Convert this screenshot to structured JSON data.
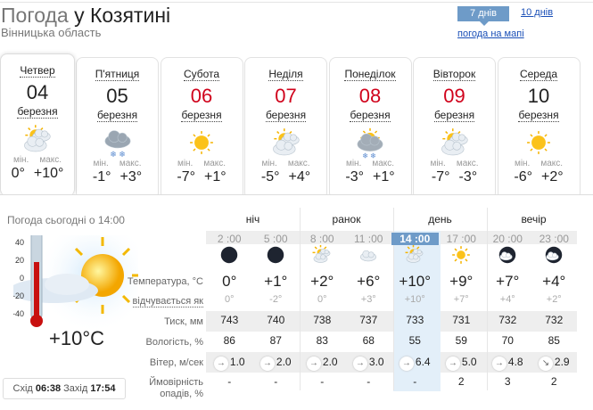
{
  "header": {
    "title_prefix": "Погода",
    "title_city": "у Козятині",
    "region": "Вінницька область",
    "btn_7": "7 днів",
    "link_10": "10 днів",
    "link_map": "погода на мапі"
  },
  "colors": {
    "accent": "#6e9bc8",
    "weekend": "#d0021b",
    "link": "#1a4fb7",
    "highlight": "#e3eff9"
  },
  "days": [
    {
      "name": "Четвер",
      "num": "04",
      "month": "березня",
      "icon": "sun-cloud",
      "min_label": "мін.",
      "max_label": "макс.",
      "min": "0°",
      "max": "+10°",
      "red": false
    },
    {
      "name": "П'ятниця",
      "num": "05",
      "month": "березня",
      "icon": "cloud-snow",
      "min_label": "мін.",
      "max_label": "макс.",
      "min": "-1°",
      "max": "+3°",
      "red": false
    },
    {
      "name": "Субота",
      "num": "06",
      "month": "березня",
      "icon": "sun",
      "min_label": "мін.",
      "max_label": "макс.",
      "min": "-7°",
      "max": "+1°",
      "red": true
    },
    {
      "name": "Неділя",
      "num": "07",
      "month": "березня",
      "icon": "sun-cloud",
      "min_label": "мін.",
      "max_label": "макс.",
      "min": "-5°",
      "max": "+4°",
      "red": true
    },
    {
      "name": "Понеділок",
      "num": "08",
      "month": "березня",
      "icon": "sun-cloud-snow",
      "min_label": "мін.",
      "max_label": "макс.",
      "min": "-3°",
      "max": "+1°",
      "red": true
    },
    {
      "name": "Вівторок",
      "num": "09",
      "month": "березня",
      "icon": "sun-cloud",
      "min_label": "мін.",
      "max_label": "макс.",
      "min": "-7°",
      "max": "-3°",
      "red": true
    },
    {
      "name": "Середа",
      "num": "10",
      "month": "березня",
      "icon": "sun",
      "min_label": "мін.",
      "max_label": "макс.",
      "min": "-6°",
      "max": "+2°",
      "red": false
    }
  ],
  "today": {
    "title": "Погода сьогодні о 14:00",
    "temp": "+10°C",
    "scale": [
      "40",
      "20",
      "0",
      "-20",
      "-40"
    ],
    "sunrise_label": "Схід",
    "sunrise": "06:38",
    "sunset_label": "Захід",
    "sunset": "17:54",
    "thermometer_level_c": 10
  },
  "table": {
    "periods": [
      "ніч",
      "ранок",
      "день",
      "вечір"
    ],
    "labels": {
      "temp": "Температура, °C",
      "feel": "відчувається як",
      "pres": "Тиск, мм",
      "hum": "Вологість, %",
      "wind": "Вітер, м/сек",
      "prec1": "Ймовірність",
      "prec2": "опадів, %"
    },
    "current_index": 4,
    "hours": [
      "2 :00",
      "5 :00",
      "8 :00",
      "11 :00",
      "14 :00",
      "17 :00",
      "20 :00",
      "23 :00"
    ],
    "icons": [
      "moon",
      "moon",
      "sun-cloud",
      "cloud",
      "sun-cloud",
      "sun",
      "moon-cloud",
      "moon-cloud"
    ],
    "temp": [
      "0°",
      "+1°",
      "+2°",
      "+6°",
      "+10°",
      "+9°",
      "+7°",
      "+4°"
    ],
    "feel": [
      "0°",
      "-2°",
      "0°",
      "+3°",
      "+10°",
      "+7°",
      "+4°",
      "+2°"
    ],
    "pres": [
      "743",
      "740",
      "738",
      "737",
      "733",
      "731",
      "732",
      "732"
    ],
    "hum": [
      "86",
      "87",
      "83",
      "68",
      "55",
      "59",
      "70",
      "85"
    ],
    "wind_dir": [
      "→",
      "→",
      "→",
      "→",
      "→",
      "→",
      "→",
      "↘"
    ],
    "wind": [
      "1.0",
      "2.0",
      "2.0",
      "3.0",
      "6.4",
      "5.0",
      "4.8",
      "2.9"
    ],
    "prec": [
      "-",
      "-",
      "-",
      "-",
      "-",
      "2",
      "3",
      "2"
    ]
  }
}
